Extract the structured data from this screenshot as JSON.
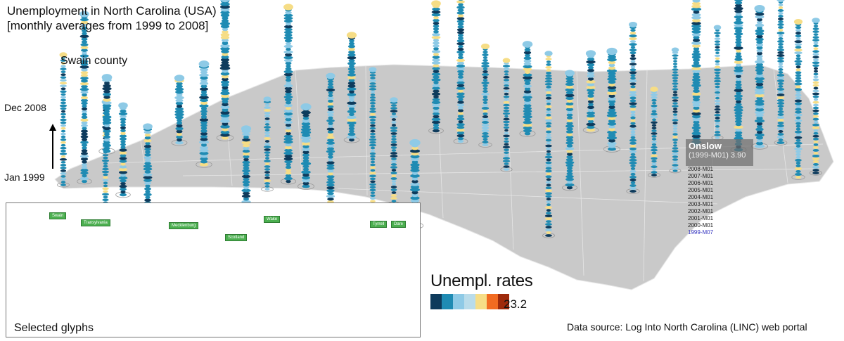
{
  "title": {
    "line1": "Unemployment in North Carolina (USA)",
    "line2": "[monthly averages from 1999 to 2008]"
  },
  "annotations": {
    "swain": "Swain county",
    "top_time": "Dec 2008",
    "bottom_time": "Jan 1999"
  },
  "tooltip": {
    "county": "Onslow",
    "detail": "(1999-M01) 3.90",
    "years": [
      "2008-M01",
      "2007-M01",
      "2006-M01",
      "2005-M01",
      "2004-M01",
      "2003-M01",
      "2002-M01",
      "2001-M01",
      "2000-M01",
      "1999-M07"
    ]
  },
  "legend": {
    "title": "Unempl. rates",
    "max_value": "23.2",
    "colors": [
      "#0e3b5c",
      "#1f8bb3",
      "#8ecae6",
      "#b9dcea",
      "#f6dd86",
      "#f26b21",
      "#9e2a0b"
    ]
  },
  "inset": {
    "caption": "Selected glyphs",
    "tags": [
      "Swain",
      "Transylvania",
      "Mecklenburg",
      "Scotland",
      "Wake",
      "Tyrrell",
      "Dare"
    ]
  },
  "source": "Data source: Log Into North Carolina (LINC) web portal"
}
